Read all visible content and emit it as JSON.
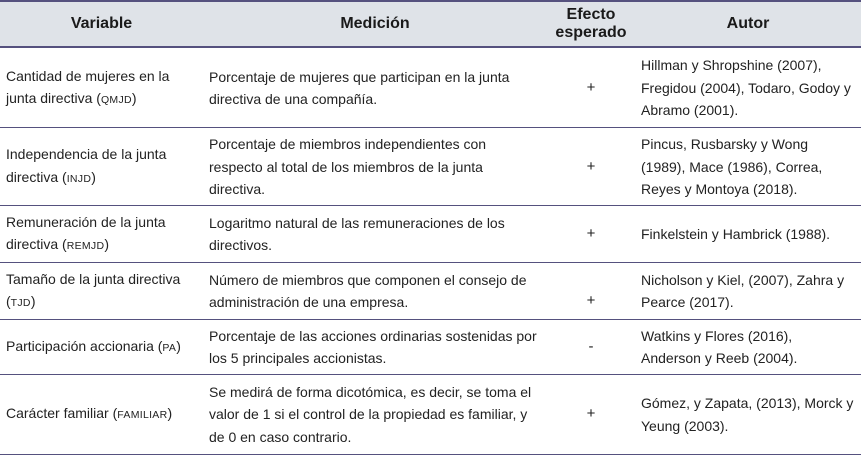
{
  "headers": {
    "variable": "Variable",
    "medicion": "Medición",
    "efecto": "Efecto esperado",
    "autor": "Autor"
  },
  "rows": [
    {
      "variable": "Cantidad de mujeres en la junta directiva (",
      "abbr": "QMJD",
      "medicion": "Porcentaje de mujeres que participan en la junta directiva de una compañía.",
      "efecto": "+",
      "autor": "Hillman y Shropshine (2007), Fregidou (2004), Todaro, Godoy y Abramo (2001)."
    },
    {
      "variable": "Independencia de la junta directiva (",
      "abbr": "INJD",
      "medicion": "Porcentaje de miembros independientes con respecto al total de los miembros de la junta directiva.",
      "efecto": "+",
      "autor": "Pincus, Rusbarsky y Wong (1989), Mace (1986), Correa, Reyes y Montoya (2018)."
    },
    {
      "variable": "Remuneración de la junta directiva (",
      "abbr": "REMJD",
      "medicion": "Logaritmo natural de las remuneraciones de los directivos.",
      "efecto": "+",
      "autor": "Finkelstein y Hambrick (1988)."
    },
    {
      "variable": "Tamaño de la junta directiva (",
      "abbr": "TJD",
      "medicion": "Número de miembros que componen el consejo de administración de una empresa.",
      "efecto": "+",
      "autor": "Nicholson y Kiel, (2007), Zahra y Pearce (2017)."
    },
    {
      "variable": "Participación accionaria (",
      "abbr": "PA",
      "medicion": "Porcentaje de las acciones ordinarias sostenidas por los 5 principales accionistas.",
      "efecto": "-",
      "autor": "Watkins y Flores (2016), Anderson y Reeb (2004)."
    },
    {
      "variable": "Carácter familiar (",
      "abbr": "FAMILIAR",
      "medicion": "Se medirá de forma dicotómica, es decir, se toma el valor de 1 si el control de la propiedad es familiar, y de 0 en caso contrario.",
      "efecto": "+",
      "autor": "Gómez, y Zapata, (2013), Morck y Yeung (2003)."
    }
  ],
  "close_paren": ")"
}
